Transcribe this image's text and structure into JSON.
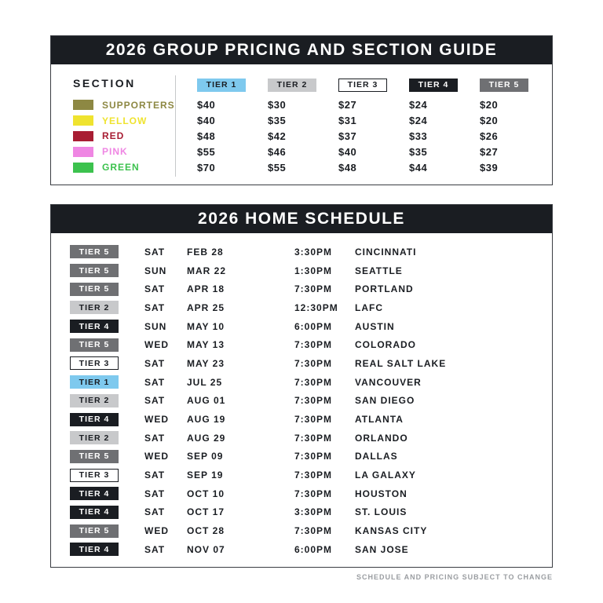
{
  "pricing_guide": {
    "title": "2026 GROUP PRICING AND SECTION GUIDE",
    "section_header": "SECTION",
    "tiers": [
      "TIER 1",
      "TIER 2",
      "TIER 3",
      "TIER 4",
      "TIER 5"
    ],
    "sections": [
      {
        "name": "SUPPORTERS",
        "color": "#8d8843",
        "prices": [
          "$40",
          "$30",
          "$27",
          "$24",
          "$20"
        ]
      },
      {
        "name": "YELLOW",
        "color": "#efe32f",
        "prices": [
          "$40",
          "$35",
          "$31",
          "$24",
          "$20"
        ]
      },
      {
        "name": "RED",
        "color": "#a81d33",
        "prices": [
          "$48",
          "$42",
          "$37",
          "$33",
          "$26"
        ]
      },
      {
        "name": "PINK",
        "color": "#ef86e3",
        "prices": [
          "$55",
          "$46",
          "$40",
          "$35",
          "$27"
        ]
      },
      {
        "name": "GREEN",
        "color": "#3cc24e",
        "prices": [
          "$70",
          "$55",
          "$48",
          "$44",
          "$39"
        ]
      }
    ]
  },
  "tier_styles": {
    "TIER 1": {
      "bg": "#7ec9ee",
      "fg": "#1a1d22",
      "border": "#7ec9ee"
    },
    "TIER 2": {
      "bg": "#c8c9cb",
      "fg": "#1a1d22",
      "border": "#c8c9cb"
    },
    "TIER 3": {
      "bg": "#ffffff",
      "fg": "#1a1d22",
      "border": "#1a1d22"
    },
    "TIER 4": {
      "bg": "#1a1d22",
      "fg": "#ffffff",
      "border": "#1a1d22"
    },
    "TIER 5": {
      "bg": "#6f7073",
      "fg": "#ffffff",
      "border": "#6f7073"
    }
  },
  "schedule": {
    "title": "2026 HOME SCHEDULE",
    "games": [
      {
        "tier": "TIER 5",
        "day": "SAT",
        "date": "FEB 28",
        "time": "3:30PM",
        "opponent": "CINCINNATI"
      },
      {
        "tier": "TIER 5",
        "day": "SUN",
        "date": "MAR 22",
        "time": "1:30PM",
        "opponent": "SEATTLE"
      },
      {
        "tier": "TIER 5",
        "day": "SAT",
        "date": "APR 18",
        "time": "7:30PM",
        "opponent": "PORTLAND"
      },
      {
        "tier": "TIER 2",
        "day": "SAT",
        "date": "APR 25",
        "time": "12:30PM",
        "opponent": "LAFC"
      },
      {
        "tier": "TIER 4",
        "day": "SUN",
        "date": "MAY 10",
        "time": "6:00PM",
        "opponent": "AUSTIN"
      },
      {
        "tier": "TIER 5",
        "day": "WED",
        "date": "MAY 13",
        "time": "7:30PM",
        "opponent": "COLORADO"
      },
      {
        "tier": "TIER 3",
        "day": "SAT",
        "date": "MAY 23",
        "time": "7:30PM",
        "opponent": "REAL SALT LAKE"
      },
      {
        "tier": "TIER 1",
        "day": "SAT",
        "date": "JUL 25",
        "time": "7:30PM",
        "opponent": "VANCOUVER"
      },
      {
        "tier": "TIER 2",
        "day": "SAT",
        "date": "AUG 01",
        "time": "7:30PM",
        "opponent": "SAN DIEGO"
      },
      {
        "tier": "TIER 4",
        "day": "WED",
        "date": "AUG 19",
        "time": "7:30PM",
        "opponent": "ATLANTA"
      },
      {
        "tier": "TIER 2",
        "day": "SAT",
        "date": "AUG 29",
        "time": "7:30PM",
        "opponent": "ORLANDO"
      },
      {
        "tier": "TIER 5",
        "day": "WED",
        "date": "SEP 09",
        "time": "7:30PM",
        "opponent": "DALLAS"
      },
      {
        "tier": "TIER 3",
        "day": "SAT",
        "date": "SEP 19",
        "time": "7:30PM",
        "opponent": "LA GALAXY"
      },
      {
        "tier": "TIER 4",
        "day": "SAT",
        "date": "OCT 10",
        "time": "7:30PM",
        "opponent": "HOUSTON"
      },
      {
        "tier": "TIER 4",
        "day": "SAT",
        "date": "OCT 17",
        "time": "3:30PM",
        "opponent": "ST. LOUIS"
      },
      {
        "tier": "TIER 5",
        "day": "WED",
        "date": "OCT 28",
        "time": "7:30PM",
        "opponent": "KANSAS CITY"
      },
      {
        "tier": "TIER 4",
        "day": "SAT",
        "date": "NOV 07",
        "time": "6:00PM",
        "opponent": "SAN JOSE"
      }
    ],
    "footnote": "SCHEDULE AND PRICING SUBJECT TO CHANGE"
  }
}
